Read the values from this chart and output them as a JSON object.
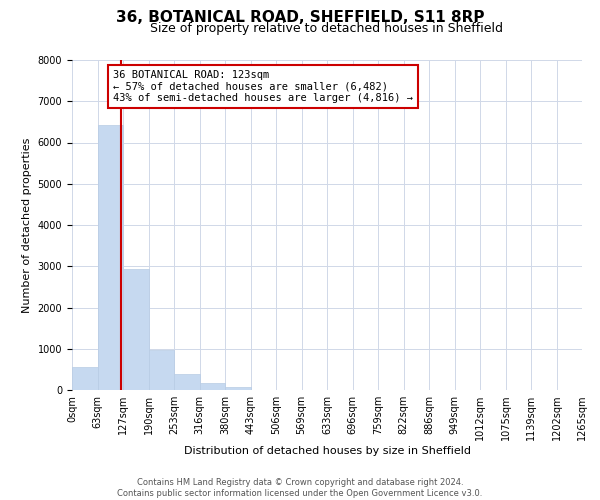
{
  "title": "36, BOTANICAL ROAD, SHEFFIELD, S11 8RP",
  "subtitle": "Size of property relative to detached houses in Sheffield",
  "xlabel": "Distribution of detached houses by size in Sheffield",
  "ylabel": "Number of detached properties",
  "bin_labels": [
    "0sqm",
    "63sqm",
    "127sqm",
    "190sqm",
    "253sqm",
    "316sqm",
    "380sqm",
    "443sqm",
    "506sqm",
    "569sqm",
    "633sqm",
    "696sqm",
    "759sqm",
    "822sqm",
    "886sqm",
    "949sqm",
    "1012sqm",
    "1075sqm",
    "1139sqm",
    "1202sqm",
    "1265sqm"
  ],
  "bar_heights": [
    560,
    6420,
    2940,
    980,
    380,
    160,
    80,
    0,
    0,
    0,
    0,
    0,
    0,
    0,
    0,
    0,
    0,
    0,
    0,
    0
  ],
  "bar_color": "#c6d9f0",
  "bar_edge_color": "#b8cce4",
  "vline_color": "#cc0000",
  "annotation_text": "36 BOTANICAL ROAD: 123sqm\n← 57% of detached houses are smaller (6,482)\n43% of semi-detached houses are larger (4,816) →",
  "annotation_box_color": "#ffffff",
  "annotation_box_edge_color": "#cc0000",
  "ylim": [
    0,
    8000
  ],
  "yticks": [
    0,
    1000,
    2000,
    3000,
    4000,
    5000,
    6000,
    7000,
    8000
  ],
  "background_color": "#ffffff",
  "grid_color": "#d0d8e8",
  "footer_line1": "Contains HM Land Registry data © Crown copyright and database right 2024.",
  "footer_line2": "Contains public sector information licensed under the Open Government Licence v3.0.",
  "title_fontsize": 11,
  "subtitle_fontsize": 9,
  "label_fontsize": 8,
  "tick_fontsize": 7,
  "annotation_fontsize": 7.5,
  "footer_fontsize": 6
}
